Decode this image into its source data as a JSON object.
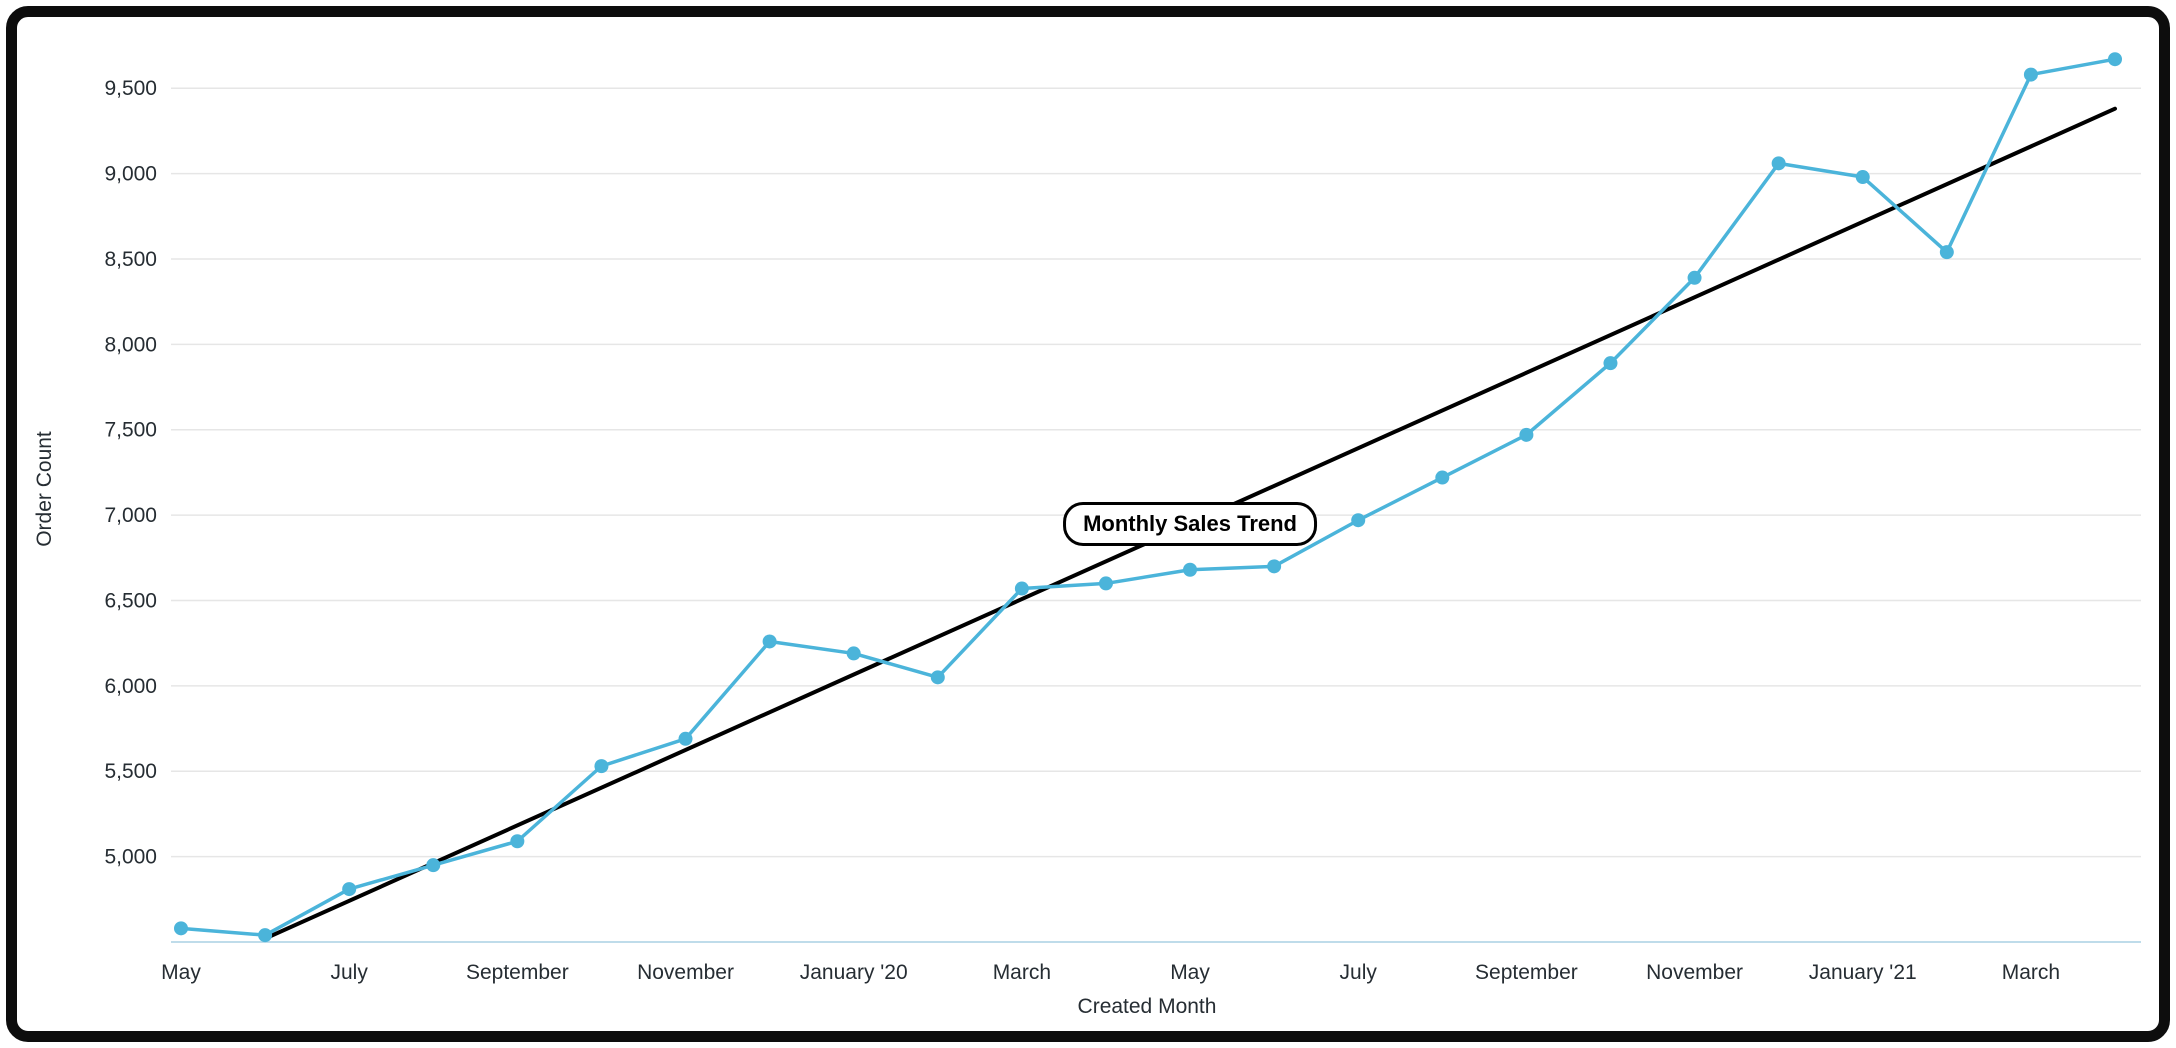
{
  "frame": {
    "border_color": "#0d0d0d",
    "card_background": "#ffffff"
  },
  "chart_data": {
    "type": "line",
    "xlabel": "Created Month",
    "ylabel": "Order Count",
    "ylim": [
      4500,
      9800
    ],
    "grid": true,
    "legend": "none",
    "categories": [
      "May '19",
      "Jun '19",
      "Jul '19",
      "Aug '19",
      "Sep '19",
      "Oct '19",
      "Nov '19",
      "Dec '19",
      "Jan '20",
      "Feb '20",
      "Mar '20",
      "Apr '20",
      "May '20",
      "Jun '20",
      "Jul '20",
      "Aug '20",
      "Sep '20",
      "Oct '20",
      "Nov '20",
      "Dec '20",
      "Jan '21",
      "Feb '21",
      "Mar '21",
      "Apr '21"
    ],
    "values": [
      4580,
      4540,
      4810,
      4950,
      5090,
      5530,
      5690,
      6260,
      6190,
      6050,
      6570,
      6600,
      6680,
      6700,
      6970,
      7220,
      7470,
      7890,
      8390,
      9060,
      8980,
      8540,
      9580,
      9670
    ],
    "series_name": "Order Count",
    "y_ticks": [
      5000,
      5500,
      6000,
      6500,
      7000,
      7500,
      8000,
      8500,
      9000,
      9500
    ],
    "x_ticks": [
      {
        "index": 0,
        "label": "May"
      },
      {
        "index": 2,
        "label": "July"
      },
      {
        "index": 4,
        "label": "September"
      },
      {
        "index": 6,
        "label": "November"
      },
      {
        "index": 8,
        "label": "January '20"
      },
      {
        "index": 10,
        "label": "March"
      },
      {
        "index": 12,
        "label": "May"
      },
      {
        "index": 14,
        "label": "July"
      },
      {
        "index": 16,
        "label": "September"
      },
      {
        "index": 18,
        "label": "November"
      },
      {
        "index": 20,
        "label": "January '21"
      },
      {
        "index": 22,
        "label": "March"
      }
    ],
    "trend": {
      "start_index": 1,
      "start_value": 4520,
      "end_index": 23,
      "end_value": 9380
    },
    "annotation": {
      "label": "Monthly Sales Trend",
      "x_index": 12,
      "value": 6950
    },
    "colors": {
      "line": "#4BB4DA",
      "marker": "#4BB4DA",
      "trend": "#000000",
      "grid": "#E6E6E6",
      "axis_line": "#BFDCEA",
      "text": "#262D33"
    }
  }
}
